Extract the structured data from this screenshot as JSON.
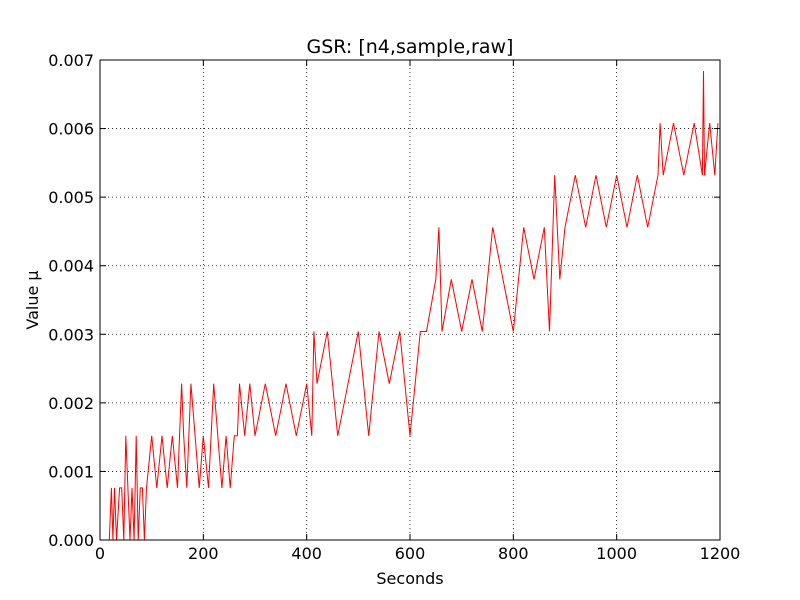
{
  "chart_data": {
    "type": "line",
    "title": "GSR: [n4,sample,raw]",
    "xlabel": "Seconds",
    "ylabel": "Value µ",
    "xlim": [
      0,
      1200
    ],
    "ylim": [
      0,
      0.007
    ],
    "xticks": [
      0,
      200,
      400,
      600,
      800,
      1000,
      1200
    ],
    "xtick_labels": [
      "0",
      "200",
      "400",
      "600",
      "800",
      "1000",
      "1200"
    ],
    "yticks": [
      0,
      0.001,
      0.002,
      0.003,
      0.004,
      0.005,
      0.006,
      0.007
    ],
    "ytick_labels": [
      "0.000",
      "0.001",
      "0.002",
      "0.003",
      "0.004",
      "0.005",
      "0.006",
      "0.007"
    ],
    "grid": true,
    "series_color": "#ff0000",
    "description_levels": [
      0,
      0.00076,
      0.00152,
      0.00228,
      0.00304,
      0.0038,
      0.00456,
      0.00532,
      0.00608
    ],
    "series": [
      {
        "x": [
          18,
          22,
          25,
          28,
          32,
          38,
          42,
          46,
          50,
          54,
          58,
          62,
          66,
          70,
          74,
          78,
          82,
          86,
          90,
          100,
          110,
          120,
          130,
          140,
          150,
          158,
          162,
          168,
          176,
          184,
          192,
          200,
          210,
          220,
          228,
          236,
          244,
          252,
          260,
          266,
          270,
          280,
          290,
          300,
          320,
          340,
          360,
          380,
          400,
          410,
          414,
          420,
          440,
          460,
          480,
          500,
          520,
          540,
          560,
          580,
          600,
          620,
          626,
          632,
          650,
          656,
          662,
          680,
          700,
          720,
          740,
          760,
          780,
          800,
          810,
          820,
          840,
          860,
          870,
          880,
          890,
          900,
          920,
          940,
          960,
          980,
          1000,
          1020,
          1040,
          1060,
          1080,
          1084,
          1090,
          1110,
          1130,
          1150,
          1166,
          1168,
          1170,
          1180,
          1190,
          1196
        ],
        "y": [
          0,
          0.00076,
          0,
          0.00076,
          0,
          0.00076,
          0.00076,
          0,
          0.00152,
          0.00076,
          0,
          0.00076,
          0,
          0.00152,
          0,
          0.00076,
          0.00076,
          0,
          0.00076,
          0.00152,
          0.00076,
          0.00152,
          0.00076,
          0.00152,
          0.00076,
          0.00228,
          0.00152,
          0.00076,
          0.00228,
          0.00152,
          0.00076,
          0.00152,
          0.00076,
          0.00228,
          0.00152,
          0.00076,
          0.00152,
          0.00076,
          0.00152,
          0.00152,
          0.00228,
          0.00152,
          0.00228,
          0.00152,
          0.00228,
          0.00152,
          0.00228,
          0.00152,
          0.00228,
          0.00152,
          0.00304,
          0.00228,
          0.00304,
          0.00152,
          0.00228,
          0.00304,
          0.00152,
          0.00304,
          0.00228,
          0.00304,
          0.00152,
          0.00304,
          0.00304,
          0.00304,
          0.0038,
          0.00456,
          0.00304,
          0.0038,
          0.00304,
          0.0038,
          0.00304,
          0.00456,
          0.0038,
          0.00304,
          0.0038,
          0.00456,
          0.0038,
          0.00456,
          0.00304,
          0.00532,
          0.0038,
          0.00456,
          0.00532,
          0.00456,
          0.00532,
          0.00456,
          0.00532,
          0.00456,
          0.00532,
          0.00456,
          0.00532,
          0.00608,
          0.00532,
          0.00608,
          0.00532,
          0.00608,
          0.00532,
          0.00684,
          0.00532,
          0.00608,
          0.00532,
          0.00608
        ]
      }
    ]
  }
}
